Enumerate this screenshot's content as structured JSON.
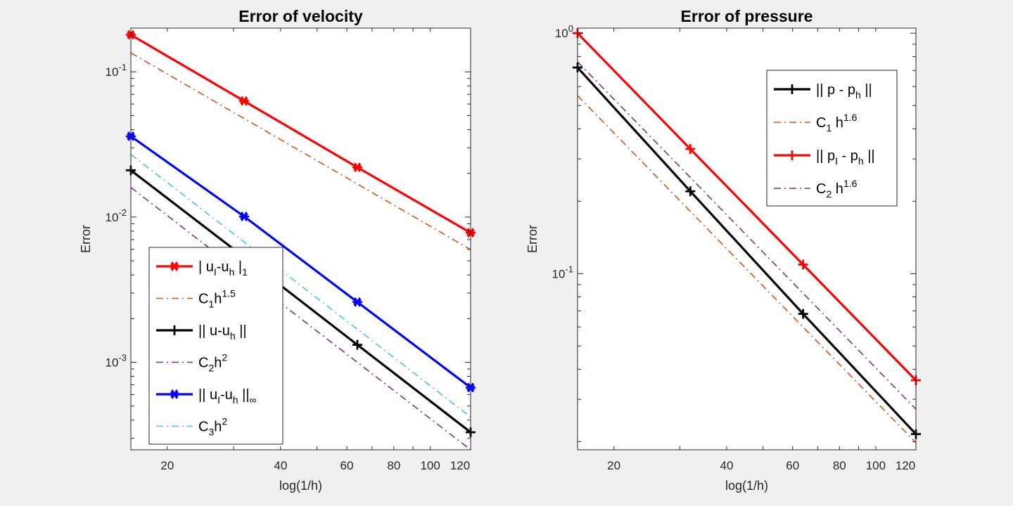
{
  "colors": {
    "red": "#ff0000",
    "blue": "#0000ff",
    "black": "#000000",
    "orange": "#d95319",
    "purple": "#7e2f8e",
    "cyan": "#4dbeee"
  },
  "chart_data": [
    {
      "type": "line",
      "scale": "loglog",
      "title": "Error of velocity",
      "xlabel": "log(1/h)",
      "ylabel": "Error",
      "xlim": [
        16,
        128
      ],
      "ylim": [
        0.00025,
        0.2
      ],
      "xticks": [
        20,
        40,
        60,
        80,
        100,
        120
      ],
      "xtick_labels": [
        "20",
        "40",
        "60",
        "80",
        "100",
        "120"
      ],
      "yticks": [
        {
          "value": 0.1,
          "base": "10",
          "exp": "-1"
        },
        {
          "value": 0.01,
          "base": "10",
          "exp": "-2"
        },
        {
          "value": 0.001,
          "base": "10",
          "exp": "-3"
        }
      ],
      "legend_location": "bottom-left",
      "series": [
        {
          "name": "| u_I-u_h |_1",
          "label": {
            "a": "| u",
            "a_sub": "I",
            "b": "-u",
            "b_sub": "h",
            "c": " |",
            "c_sub": "1"
          },
          "color": "red",
          "style": "solid",
          "marker": "asterisk",
          "width": 3.2,
          "x": [
            16,
            32,
            64,
            128
          ],
          "y": [
            0.18,
            0.063,
            0.022,
            0.0078
          ]
        },
        {
          "name": "C_1h^1.5",
          "label": {
            "a": "C",
            "a_sub": "1",
            "b": "h",
            "b_sup": "1.5"
          },
          "color": "orange",
          "style": "dashdot",
          "marker": "none",
          "width": 1.6,
          "x": [
            16,
            32,
            64,
            128
          ],
          "y": [
            0.135,
            0.0477,
            0.0169,
            0.00597
          ]
        },
        {
          "name": "|| u-u_h ||",
          "label": {
            "a": "|| u-u",
            "a_sub": "h",
            "b": " ||"
          },
          "color": "black",
          "style": "solid",
          "marker": "plus",
          "width": 3.2,
          "x": [
            16,
            32,
            64,
            128
          ],
          "y": [
            0.021,
            0.0053,
            0.00132,
            0.00033
          ]
        },
        {
          "name": "C_2h^2",
          "label": {
            "a": "C",
            "a_sub": "2",
            "b": "h",
            "b_sup": "2"
          },
          "color": "purple",
          "style": "dashdot",
          "marker": "none",
          "width": 1.6,
          "x": [
            16,
            32,
            64,
            128
          ],
          "y": [
            0.016,
            0.004,
            0.001,
            0.00025
          ]
        },
        {
          "name": "|| u_I-u_h ||_inf",
          "label": {
            "a": "|| u",
            "a_sub": "I",
            "b": "-u",
            "b_sub": "h",
            "c": " ||",
            "c_sub": "∞"
          },
          "color": "blue",
          "style": "solid",
          "marker": "asterisk",
          "width": 3.2,
          "x": [
            16,
            32,
            64,
            128
          ],
          "y": [
            0.036,
            0.0101,
            0.0026,
            0.00067
          ]
        },
        {
          "name": "C_3h^2",
          "label": {
            "a": "C",
            "a_sub": "3",
            "b": "h",
            "b_sup": "2"
          },
          "color": "cyan",
          "style": "dashdot",
          "marker": "none",
          "width": 1.6,
          "x": [
            16,
            32,
            64,
            128
          ],
          "y": [
            0.027,
            0.00675,
            0.00169,
            0.00042
          ]
        }
      ]
    },
    {
      "type": "line",
      "scale": "loglog",
      "title": "Error of pressure",
      "xlabel": "log(1/h)",
      "ylabel": "Error",
      "xlim": [
        16,
        128
      ],
      "ylim": [
        0.0185,
        1.05
      ],
      "xticks": [
        20,
        40,
        60,
        80,
        100,
        120
      ],
      "xtick_labels": [
        "20",
        "40",
        "60",
        "80",
        "100",
        "120"
      ],
      "yticks": [
        {
          "value": 1,
          "base": "10",
          "exp": "0"
        },
        {
          "value": 0.1,
          "base": "10",
          "exp": "-1"
        }
      ],
      "legend_location": "top-right",
      "series": [
        {
          "name": "|| p - p_h ||",
          "label": {
            "a": "|| p - p",
            "a_sub": "h",
            "b": " ||"
          },
          "color": "black",
          "style": "solid",
          "marker": "plus",
          "width": 3.2,
          "x": [
            16,
            32,
            64,
            128
          ],
          "y": [
            0.72,
            0.22,
            0.068,
            0.0215
          ]
        },
        {
          "name": "C_1 h^1.6",
          "label": {
            "a": "C",
            "a_sub": "1",
            "b": " h",
            "b_sup": "1.6"
          },
          "color": "orange",
          "style": "dashdot",
          "marker": "none",
          "width": 1.6,
          "x": [
            16,
            32,
            64,
            128
          ],
          "y": [
            0.55,
            0.1815,
            0.0599,
            0.0198
          ]
        },
        {
          "name": "|| p_I - p_h ||",
          "label": {
            "a": "|| p",
            "a_sub": "I",
            "b": " - p",
            "b_sub": "h",
            "c": " ||"
          },
          "color": "red",
          "style": "solid",
          "marker": "plus",
          "width": 3.2,
          "x": [
            16,
            32,
            64,
            128
          ],
          "y": [
            1.0,
            0.33,
            0.109,
            0.036
          ]
        },
        {
          "name": "C_2 h^1.6",
          "label": {
            "a": "C",
            "a_sub": "2",
            "b": " h",
            "b_sup": "1.6"
          },
          "color": "purple",
          "style": "dashdot",
          "marker": "none",
          "width": 1.6,
          "x": [
            16,
            32,
            64,
            128
          ],
          "y": [
            0.76,
            0.251,
            0.0828,
            0.0273
          ]
        }
      ]
    }
  ]
}
